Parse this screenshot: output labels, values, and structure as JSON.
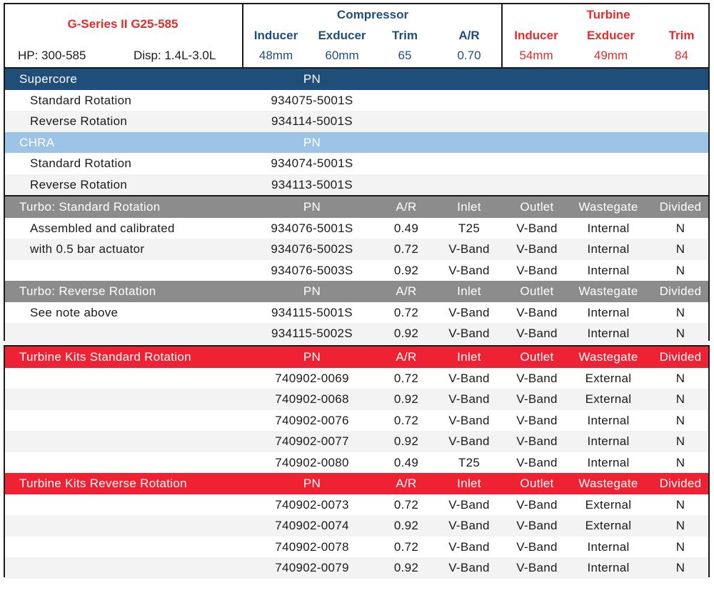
{
  "header": {
    "title": "G-Series II G25-585",
    "hp": "HP: 300-585",
    "disp": "Disp: 1.4L-3.0L",
    "compressor": {
      "label": "Compressor",
      "cols": [
        "Inducer",
        "Exducer",
        "Trim",
        "A/R"
      ],
      "vals": [
        "48mm",
        "60mm",
        "65",
        "0.70"
      ]
    },
    "turbine": {
      "label": "Turbine",
      "cols": [
        "Inducer",
        "Exducer",
        "Trim"
      ],
      "vals": [
        "54mm",
        "49mm",
        "84"
      ]
    }
  },
  "supercore": {
    "title": "Supercore",
    "pn_label": "PN",
    "rows": [
      {
        "label": "Standard Rotation",
        "pn": "934075-5001S"
      },
      {
        "label": "Reverse Rotation",
        "pn": "934114-5001S"
      }
    ]
  },
  "chra": {
    "title": "CHRA",
    "pn_label": "PN",
    "rows": [
      {
        "label": "Standard Rotation",
        "pn": "934074-5001S"
      },
      {
        "label": "Reverse Rotation",
        "pn": "934113-5001S"
      }
    ]
  },
  "columns": {
    "pn": "PN",
    "ar": "A/R",
    "inlet": "Inlet",
    "outlet": "Outlet",
    "wastegate": "Wastegate",
    "divided": "Divided"
  },
  "turbo_std": {
    "title": "Turbo: Standard Rotation",
    "rows": [
      {
        "label": "Assembled and calibrated",
        "pn": "934076-5001S",
        "ar": "0.49",
        "inlet": "T25",
        "outlet": "V-Band",
        "wg": "Internal",
        "div": "N"
      },
      {
        "label": "with 0.5 bar actuator",
        "pn": "934076-5002S",
        "ar": "0.72",
        "inlet": "V-Band",
        "outlet": "V-Band",
        "wg": "Internal",
        "div": "N"
      },
      {
        "label": "",
        "pn": "934076-5003S",
        "ar": "0.92",
        "inlet": "V-Band",
        "outlet": "V-Band",
        "wg": "Internal",
        "div": "N"
      }
    ]
  },
  "turbo_rev": {
    "title": "Turbo: Reverse Rotation",
    "rows": [
      {
        "label": "See note above",
        "pn": "934115-5001S",
        "ar": "0.72",
        "inlet": "V-Band",
        "outlet": "V-Band",
        "wg": "Internal",
        "div": "N"
      },
      {
        "label": "",
        "pn": "934115-5002S",
        "ar": "0.92",
        "inlet": "V-Band",
        "outlet": "V-Band",
        "wg": "Internal",
        "div": "N"
      }
    ]
  },
  "kits_std": {
    "title": "Turbine Kits Standard Rotation",
    "rows": [
      {
        "pn": "740902-0069",
        "ar": "0.72",
        "inlet": "V-Band",
        "outlet": "V-Band",
        "wg": "External",
        "div": "N"
      },
      {
        "pn": "740902-0068",
        "ar": "0.92",
        "inlet": "V-Band",
        "outlet": "V-Band",
        "wg": "External",
        "div": "N"
      },
      {
        "pn": "740902-0076",
        "ar": "0.72",
        "inlet": "V-Band",
        "outlet": "V-Band",
        "wg": "Internal",
        "div": "N"
      },
      {
        "pn": "740902-0077",
        "ar": "0.92",
        "inlet": "V-Band",
        "outlet": "V-Band",
        "wg": "Internal",
        "div": "N"
      },
      {
        "pn": "740902-0080",
        "ar": "0.49",
        "inlet": "T25",
        "outlet": "V-Band",
        "wg": "Internal",
        "div": "N"
      }
    ]
  },
  "kits_rev": {
    "title": "Turbine Kits Reverse Rotation",
    "rows": [
      {
        "pn": "740902-0073",
        "ar": "0.72",
        "inlet": "V-Band",
        "outlet": "V-Band",
        "wg": "External",
        "div": "N"
      },
      {
        "pn": "740902-0074",
        "ar": "0.92",
        "inlet": "V-Band",
        "outlet": "V-Band",
        "wg": "External",
        "div": "N"
      },
      {
        "pn": "740902-0078",
        "ar": "0.72",
        "inlet": "V-Band",
        "outlet": "V-Band",
        "wg": "Internal",
        "div": "N"
      },
      {
        "pn": "740902-0079",
        "ar": "0.92",
        "inlet": "V-Band",
        "outlet": "V-Band",
        "wg": "Internal",
        "div": "N"
      }
    ]
  },
  "colors": {
    "navy": "#1f4e79",
    "light_blue": "#9dc3e6",
    "grey": "#8c8c8c",
    "red": "#ee2233"
  }
}
